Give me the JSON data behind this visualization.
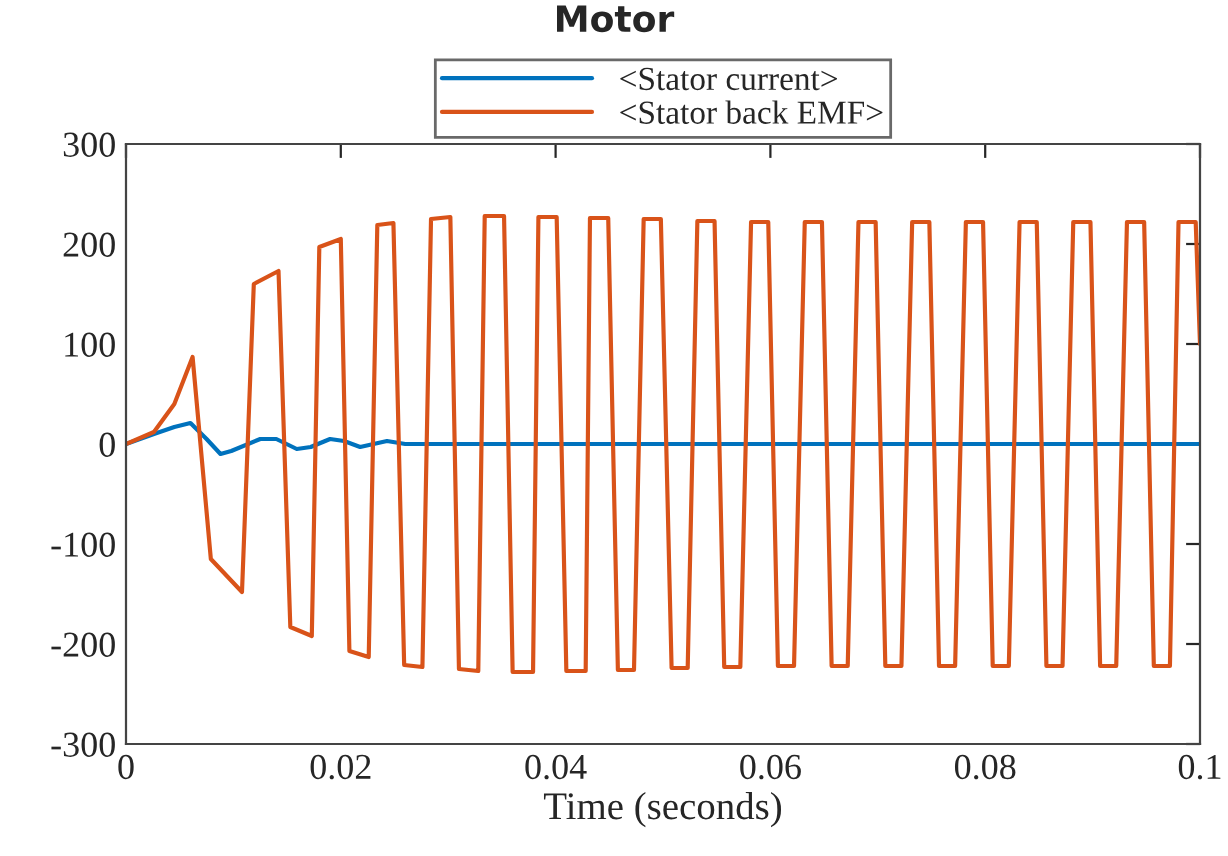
{
  "chart_data": {
    "type": "line",
    "title": "Motor",
    "xlabel": "Time (seconds)",
    "xlim": [
      0,
      0.1
    ],
    "xticks": [
      0,
      0.02,
      0.04,
      0.06,
      0.08,
      0.1
    ],
    "ylim": [
      -300,
      300
    ],
    "yticks": [
      -300,
      -200,
      -100,
      0,
      100,
      200,
      300
    ],
    "grid": false,
    "legend": "top",
    "marker": "none",
    "line_style": "solid",
    "series": [
      {
        "name": "<Stator current>",
        "color": "#0072bd",
        "x": [
          0,
          0.0026,
          0.0045,
          0.006,
          0.0075,
          0.0088,
          0.0098,
          0.0125,
          0.014,
          0.0159,
          0.0172,
          0.019,
          0.0203,
          0.0218,
          0.0243,
          0.026,
          0.03,
          0.1
        ],
        "values": [
          0,
          10,
          17,
          21,
          5,
          -10,
          -7,
          5,
          5,
          -5,
          -3,
          5,
          3,
          -3,
          3,
          0,
          0,
          0
        ]
      },
      {
        "name": "<Stator back EMF>",
        "color": "#d95319",
        "x": [
          0,
          0.0026,
          0.0045,
          0.0062,
          0.0079,
          0.0108,
          0.0119,
          0.0142,
          0.0153,
          0.0173,
          0.018,
          0.02,
          0.0208,
          0.0226,
          0.0234,
          0.0249,
          0.0259,
          0.0276,
          0.0284,
          0.0302,
          0.031,
          0.0328,
          0.0334,
          0.0352,
          0.036,
          0.0379,
          0.0384,
          0.0401,
          0.041,
          0.0428,
          0.0432,
          0.0449,
          0.0458,
          0.0473,
          0.0482,
          0.0498,
          0.0508,
          0.0523,
          0.0532,
          0.0548,
          0.0557,
          0.0572,
          0.0582,
          0.0598,
          0.0607,
          0.0622,
          0.0632,
          0.0648,
          0.0657,
          0.0672,
          0.0682,
          0.0698,
          0.0707,
          0.0722,
          0.0732,
          0.0748,
          0.0757,
          0.0772,
          0.0782,
          0.0798,
          0.0807,
          0.0822,
          0.0832,
          0.0848,
          0.0857,
          0.0872,
          0.0882,
          0.0898,
          0.0907,
          0.0922,
          0.0932,
          0.0948,
          0.0957,
          0.0972,
          0.098,
          0.0996,
          0.1
        ],
        "values": [
          0,
          12,
          40,
          87,
          -115,
          -148,
          160,
          173,
          -183,
          -192,
          197,
          205,
          -207,
          -213,
          219,
          221,
          -221,
          -223,
          225,
          227,
          -225,
          -227,
          228,
          228,
          -228,
          -228,
          227,
          227,
          -227,
          -227,
          226,
          226,
          -226,
          -226,
          225,
          225,
          -224,
          -224,
          223,
          223,
          -223,
          -223,
          222,
          222,
          -222,
          -222,
          222,
          222,
          -222,
          -222,
          222,
          222,
          -222,
          -222,
          222,
          222,
          -222,
          -222,
          222,
          222,
          -222,
          -222,
          222,
          222,
          -222,
          -222,
          222,
          222,
          -222,
          -222,
          222,
          222,
          -222,
          -222,
          222,
          222,
          100
        ]
      }
    ]
  }
}
